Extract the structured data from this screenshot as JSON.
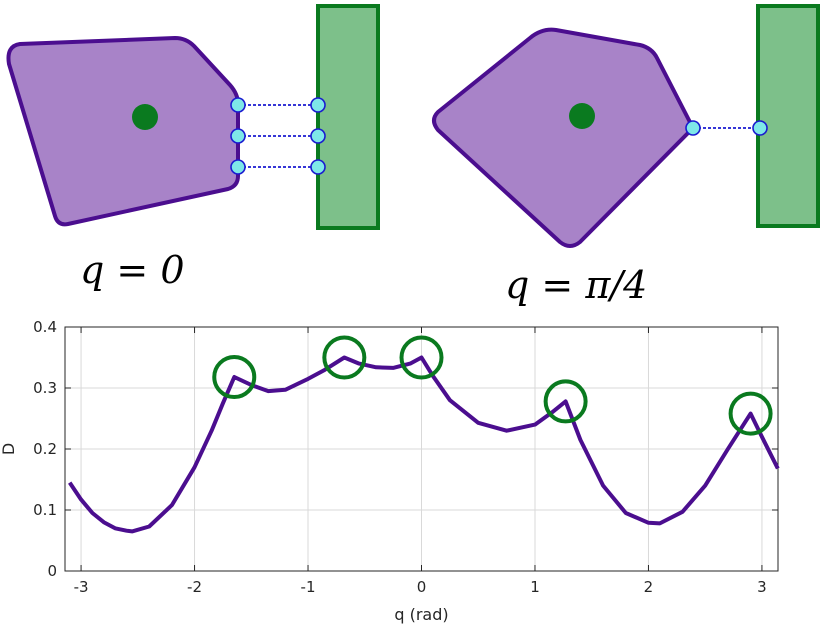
{
  "colors": {
    "polygon_fill": "#a883c8",
    "polygon_stroke": "#4b0e8f",
    "center_dot": "#0a7a1f",
    "wall_fill": "#7dc08a",
    "wall_stroke": "#0a7a1f",
    "contact_fill": "#7ee8e8",
    "contact_stroke": "#1a1ad0",
    "curve": "#4b0e8f",
    "peak_circle": "#0a7a1f",
    "grid": "#d9d9d9",
    "axis": "#262626"
  },
  "top": {
    "left_label": "q = 0",
    "right_label": "q = π/4",
    "left_contact_count": 3,
    "right_contact_count": 1
  },
  "chart_data": {
    "type": "line",
    "title": "",
    "xlabel": "q (rad)",
    "ylabel": "D",
    "xlim": [
      -3.1416,
      3.1416
    ],
    "ylim": [
      0,
      0.4
    ],
    "xticks": [
      -3,
      -2,
      -1,
      0,
      1,
      2,
      3
    ],
    "yticks": [
      0,
      0.1,
      0.2,
      0.3,
      0.4
    ],
    "grid": true,
    "series": [
      {
        "name": "",
        "x": [
          -3.1,
          -3.0,
          -2.9,
          -2.8,
          -2.7,
          -2.6,
          -2.55,
          -2.4,
          -2.2,
          -2.0,
          -1.85,
          -1.75,
          -1.65,
          -1.5,
          -1.35,
          -1.2,
          -1.0,
          -0.85,
          -0.68,
          -0.55,
          -0.4,
          -0.25,
          -0.1,
          0.0,
          0.1,
          0.25,
          0.5,
          0.75,
          1.0,
          1.15,
          1.27,
          1.4,
          1.6,
          1.8,
          2.0,
          2.1,
          2.3,
          2.5,
          2.7,
          2.9,
          3.0,
          3.14
        ],
        "y": [
          0.145,
          0.117,
          0.095,
          0.08,
          0.07,
          0.066,
          0.065,
          0.073,
          0.108,
          0.17,
          0.23,
          0.275,
          0.318,
          0.305,
          0.295,
          0.297,
          0.315,
          0.33,
          0.35,
          0.34,
          0.334,
          0.333,
          0.34,
          0.35,
          0.32,
          0.28,
          0.243,
          0.23,
          0.24,
          0.26,
          0.278,
          0.215,
          0.14,
          0.095,
          0.079,
          0.078,
          0.097,
          0.14,
          0.2,
          0.258,
          0.22,
          0.168
        ]
      }
    ],
    "highlighted_peaks": [
      {
        "x": -1.65,
        "y": 0.318
      },
      {
        "x": -0.68,
        "y": 0.35
      },
      {
        "x": 0.0,
        "y": 0.35
      },
      {
        "x": 1.27,
        "y": 0.278
      },
      {
        "x": 2.9,
        "y": 0.258
      }
    ]
  }
}
